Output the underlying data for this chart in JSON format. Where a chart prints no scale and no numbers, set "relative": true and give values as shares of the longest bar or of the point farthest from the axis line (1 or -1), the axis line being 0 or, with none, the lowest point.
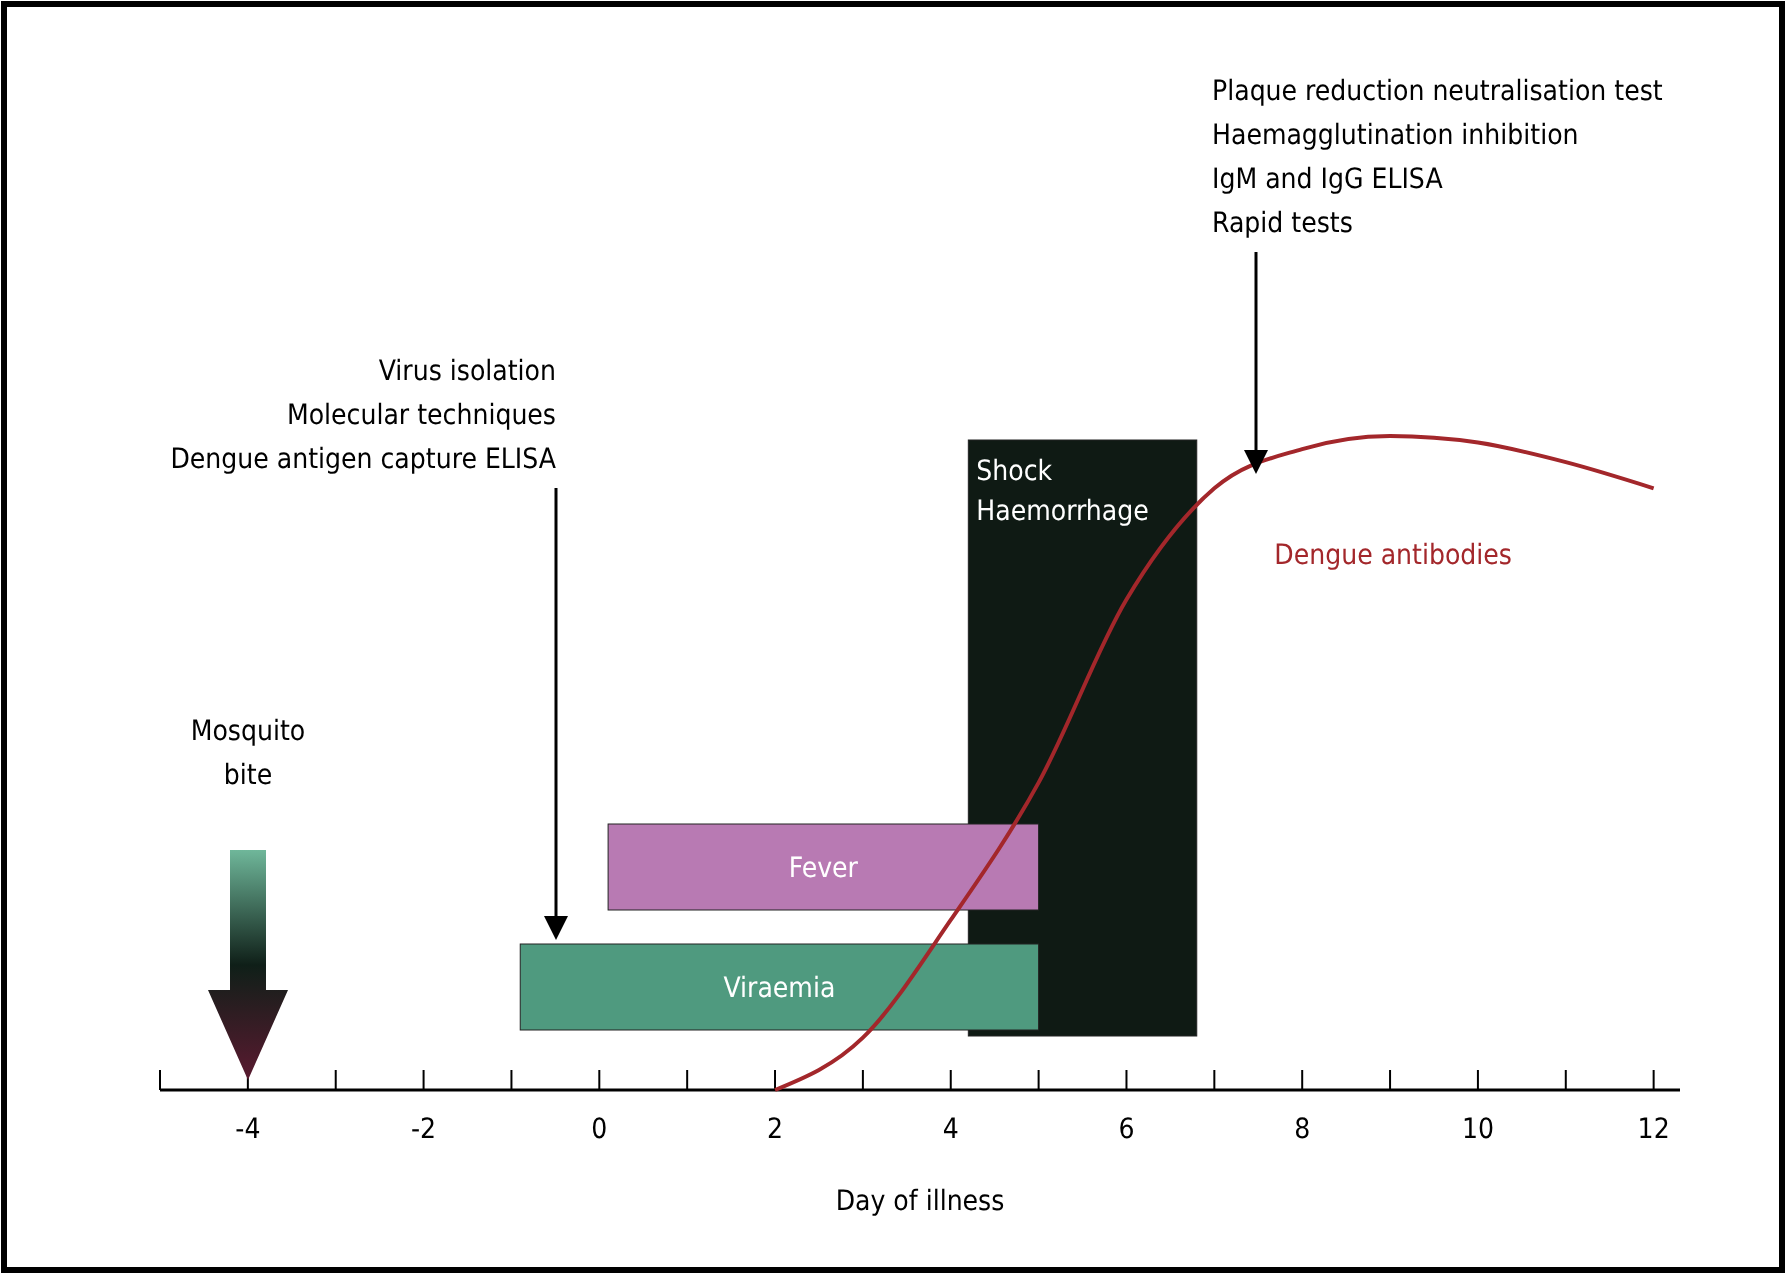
{
  "chart_data": {
    "type": "line",
    "relative": true,
    "xlabel": "Day of illness",
    "xlim": [
      -5,
      12.3
    ],
    "xticks": [
      {
        "value": -5,
        "label": null
      },
      -4,
      {
        "value": -3,
        "label": null
      },
      -2,
      {
        "value": -1,
        "label": null
      },
      0,
      {
        "value": 1,
        "label": null
      },
      2,
      {
        "value": 3,
        "label": null
      },
      4,
      {
        "value": 5,
        "label": null
      },
      6,
      {
        "value": 7,
        "label": null
      },
      8,
      {
        "value": 9,
        "label": null
      },
      10,
      {
        "value": 11,
        "label": null
      },
      12
    ],
    "series": [
      {
        "name": "Dengue antibodies",
        "color": "#a3272b",
        "x": [
          2,
          3,
          4,
          5,
          6,
          7,
          8,
          9,
          10,
          11,
          12
        ],
        "values": [
          0,
          0.08,
          0.26,
          0.47,
          0.75,
          0.92,
          0.98,
          1,
          0.99,
          0.96,
          0.92
        ]
      }
    ],
    "bands": [
      {
        "axis": "x",
        "from": 4.2,
        "to": 6.8,
        "label": "Shock\nHaemorrhage",
        "color": "#0f1a14"
      },
      {
        "axis": "x",
        "from": 0.1,
        "to": 5,
        "label": "Fever",
        "color": "#b87ab3"
      },
      {
        "axis": "x",
        "from": -0.9,
        "to": 5,
        "label": "Viraemia",
        "color": "#4f9a7f"
      }
    ],
    "annotations": [
      "Mosquito\nbite",
      "Virus isolation\nMolecular techniques\nDengue antigen capture ELISA",
      "Plaque reduction neutralisation test\nHaemagglutination inhibition\nIgM and IgG ELISA\nRapid tests"
    ],
    "marker": "none",
    "line_style": "solid"
  }
}
